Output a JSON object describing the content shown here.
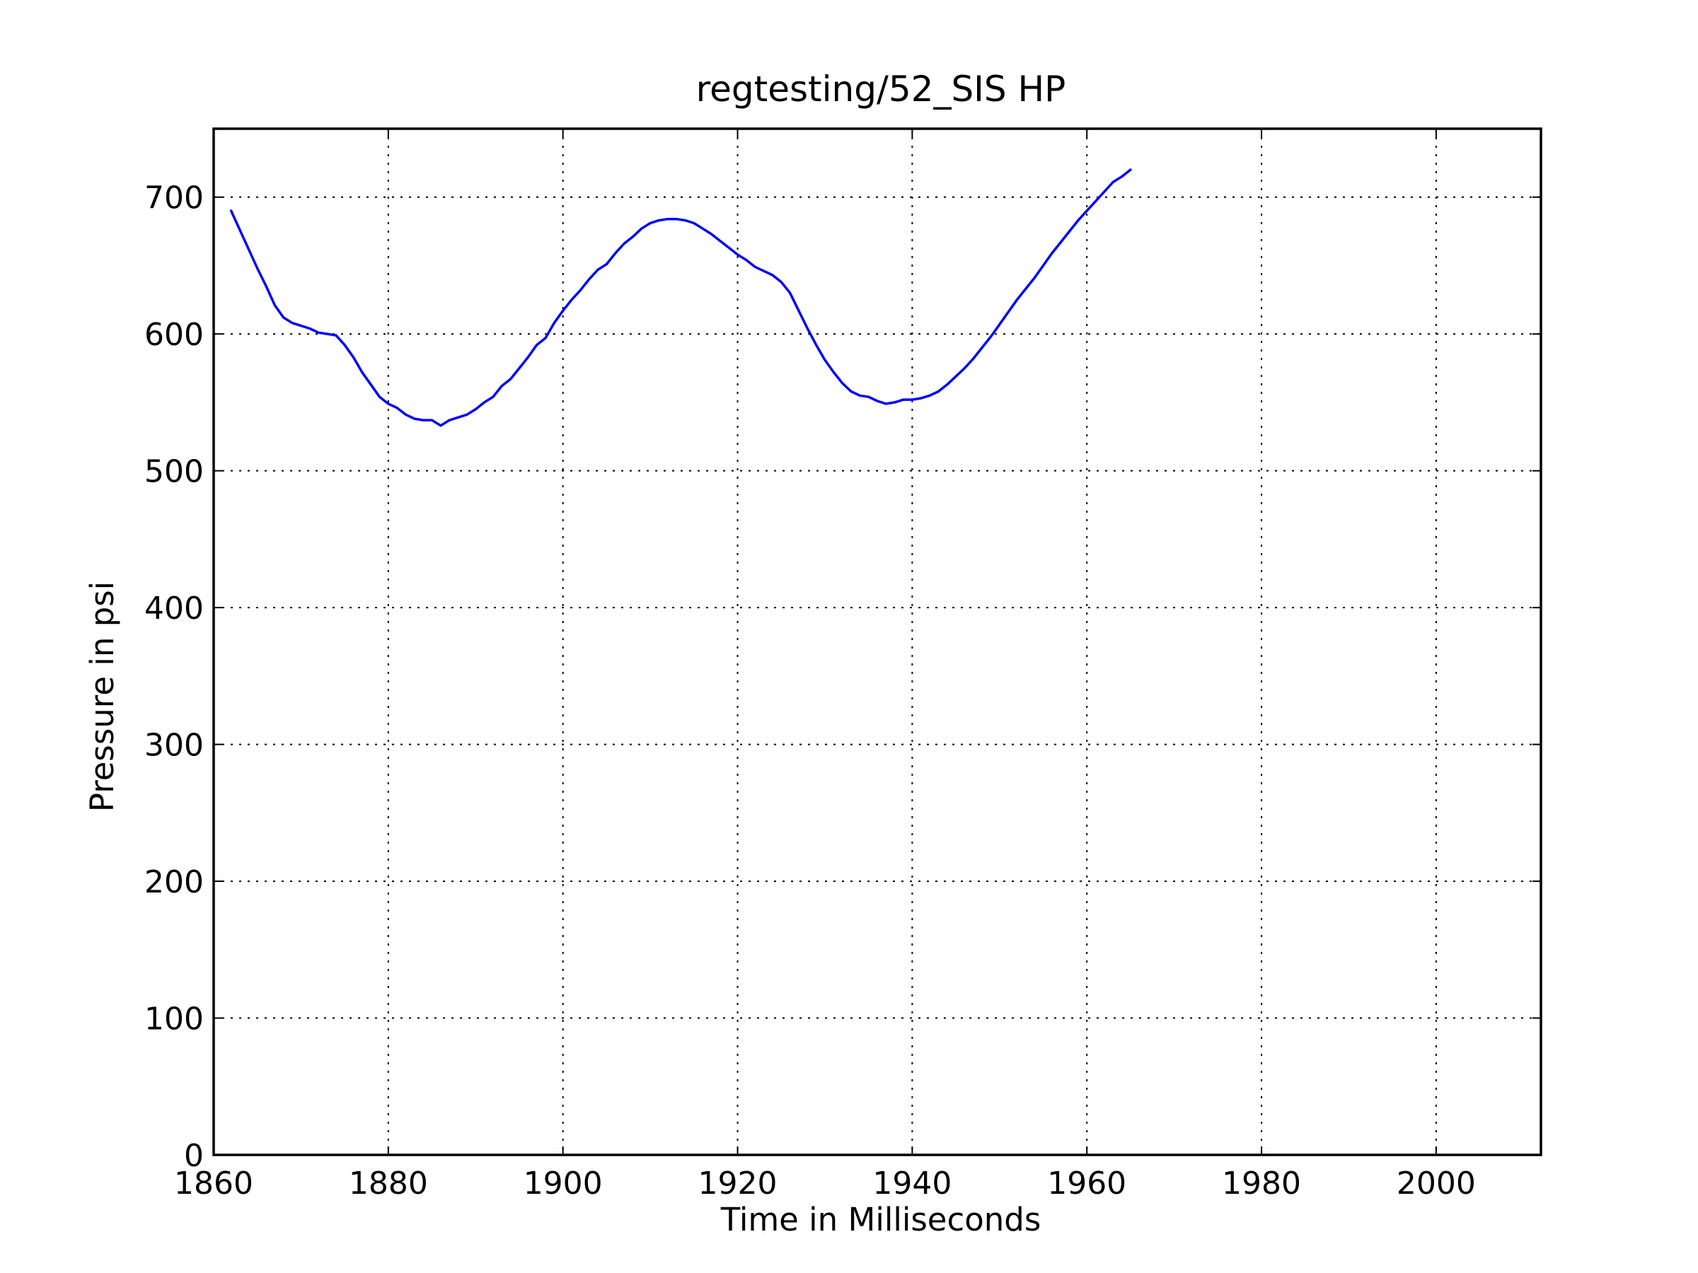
{
  "chart_data": {
    "type": "line",
    "title": "regtesting/52_SIS HP",
    "xlabel": "Time in Milliseconds",
    "ylabel": "Pressure in psi",
    "xlim": [
      1860,
      2012
    ],
    "ylim": [
      0,
      750
    ],
    "xticks": [
      1860,
      1880,
      1900,
      1920,
      1940,
      1960,
      1980,
      2000
    ],
    "yticks": [
      0,
      100,
      200,
      300,
      400,
      500,
      600,
      700
    ],
    "grid": true,
    "legend": "none",
    "series": [
      {
        "color": "#0000ff",
        "x": [
          1862,
          1863,
          1864,
          1865,
          1866,
          1867,
          1868,
          1869,
          1870,
          1871,
          1872,
          1873,
          1874,
          1875,
          1876,
          1877,
          1878,
          1879,
          1880,
          1881,
          1882,
          1883,
          1884,
          1885,
          1886,
          1887,
          1888,
          1889,
          1890,
          1891,
          1892,
          1893,
          1894,
          1895,
          1896,
          1897,
          1898,
          1899,
          1900,
          1901,
          1902,
          1903,
          1904,
          1905,
          1906,
          1907,
          1908,
          1909,
          1910,
          1911,
          1912,
          1913,
          1914,
          1915,
          1916,
          1917,
          1918,
          1919,
          1920,
          1921,
          1922,
          1923,
          1924,
          1925,
          1926,
          1927,
          1928,
          1929,
          1930,
          1931,
          1932,
          1933,
          1934,
          1935,
          1936,
          1937,
          1938,
          1939,
          1940,
          1941,
          1942,
          1943,
          1944,
          1945,
          1946,
          1947,
          1948,
          1949,
          1950,
          1951,
          1952,
          1953,
          1954,
          1955,
          1956,
          1957,
          1958,
          1959,
          1960,
          1961,
          1962,
          1963,
          1964,
          1965
        ],
        "y": [
          690,
          676,
          662,
          648,
          635,
          621,
          612,
          608,
          606,
          604,
          601,
          600,
          599,
          592,
          583,
          572,
          563,
          554,
          549,
          546,
          541,
          538,
          537,
          537,
          533,
          537,
          539,
          541,
          545,
          550,
          554,
          562,
          567,
          575,
          583,
          592,
          597,
          608,
          617,
          625,
          632,
          640,
          647,
          651,
          659,
          666,
          671,
          677,
          681,
          683,
          684,
          684,
          683,
          681,
          677,
          673,
          668,
          663,
          658,
          654,
          649,
          646,
          643,
          638,
          630,
          617,
          604,
          592,
          581,
          572,
          564,
          558,
          555,
          554,
          551,
          549,
          550,
          552,
          552,
          553,
          555,
          558,
          563,
          569,
          575,
          582,
          590,
          598,
          607,
          616,
          625,
          633,
          641,
          650,
          659,
          667,
          675,
          683,
          690,
          697,
          704,
          711,
          715,
          720
        ]
      }
    ]
  }
}
